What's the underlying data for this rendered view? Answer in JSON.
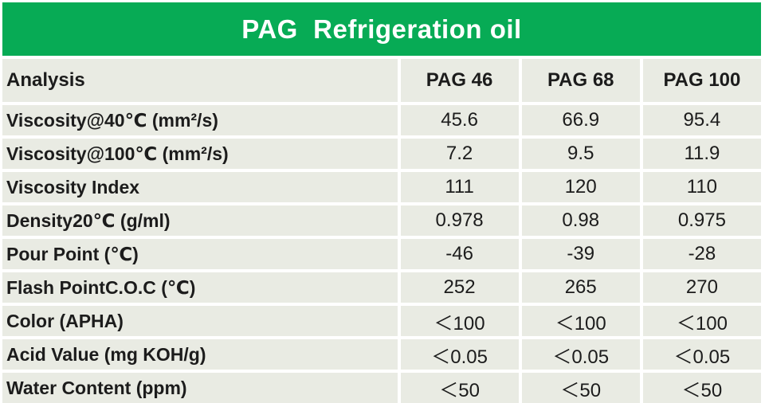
{
  "chart_data": {
    "type": "table",
    "title": "PAG  Refrigeration oil",
    "columns": [
      "Analysis",
      "PAG 46",
      "PAG 68",
      "PAG 100"
    ],
    "rows": [
      {
        "label": "Viscosity@40℃ (mm²/s)",
        "values": [
          "45.6",
          "66.9",
          "95.4"
        ]
      },
      {
        "label": "Viscosity@100℃ (mm²/s)",
        "values": [
          "7.2",
          "9.5",
          "11.9"
        ]
      },
      {
        "label": "Viscosity Index",
        "values": [
          "111",
          "120",
          "110"
        ]
      },
      {
        "label": "Density20℃ (g/ml)",
        "values": [
          "0.978",
          "0.98",
          "0.975"
        ]
      },
      {
        "label": "Pour Point (℃)",
        "values": [
          "-46",
          "-39",
          "-28"
        ]
      },
      {
        "label": "Flash PointC.O.C (℃)",
        "values": [
          "252",
          "265",
          "270"
        ]
      },
      {
        "label": "Color (APHA)",
        "values": [
          "＜100",
          "＜100",
          "＜100"
        ]
      },
      {
        "label": "Acid Value (mg KOH/g)",
        "values": [
          "＜0.05",
          "＜0.05",
          "＜0.05"
        ]
      },
      {
        "label": "Water Content (ppm)",
        "values": [
          "＜50",
          "＜50",
          "＜50"
        ]
      }
    ],
    "layout_hints": {
      "grid": "white separators between cells",
      "value_alignment": "center",
      "label_alignment": "left"
    }
  },
  "colors": {
    "title_bar_green": "#07ab55",
    "title_text": "#ffffff",
    "cell_background": "#e9ebe3",
    "separator": "#ffffff",
    "table_text": "#1c1c1c"
  }
}
